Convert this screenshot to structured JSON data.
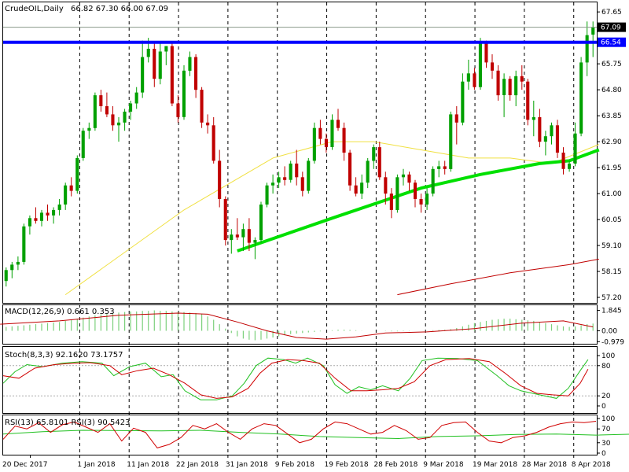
{
  "header": {
    "symbol": "CrudeOIL,Daily",
    "ohlc": "66.82 67.30 66.00 67.09"
  },
  "colors": {
    "bull": "#00a000",
    "bear": "#c00000",
    "ma_fast": "#00e000",
    "ma_mid": "#f0e040",
    "ma_slow": "#c00000",
    "resistance": "#0000ff",
    "macd_hist": "#7cd07c",
    "signal": "#c00000",
    "stoch_main": "#20c020",
    "stoch_signal": "#d00000",
    "rsi_fast": "#d00000",
    "rsi_slow": "#20c020"
  },
  "chart_data": {
    "type": "candlestick",
    "price_axis": {
      "ticks": [
        "67.65",
        "65.75",
        "64.80",
        "63.85",
        "62.90",
        "61.95",
        "61.00",
        "60.05",
        "59.10",
        "58.15",
        "57.20"
      ],
      "current_price": "67.09",
      "resistance_price": "66.54",
      "range": [
        57.0,
        68.0
      ]
    },
    "date_labels": [
      "20 Dec 2017",
      "1 Jan 2018",
      "11 Jan 2018",
      "22 Jan 2018",
      "31 Jan 2018",
      "9 Feb 2018",
      "19 Feb 2018",
      "28 Feb 2018",
      "9 Mar 2018",
      "19 Mar 2018",
      "28 Mar 2018",
      "8 Apr 2018"
    ],
    "candles": [
      [
        57.8,
        58.3,
        57.6,
        58.2
      ],
      [
        58.2,
        58.5,
        57.9,
        58.4
      ],
      [
        58.4,
        58.7,
        58.2,
        58.5
      ],
      [
        58.5,
        59.9,
        58.4,
        59.8
      ],
      [
        59.8,
        60.2,
        59.5,
        60.1
      ],
      [
        60.1,
        60.5,
        59.9,
        60.0
      ],
      [
        60.0,
        60.4,
        59.8,
        60.3
      ],
      [
        60.3,
        60.6,
        60.0,
        60.2
      ],
      [
        60.2,
        60.5,
        59.9,
        60.4
      ],
      [
        60.4,
        60.8,
        60.2,
        60.6
      ],
      [
        60.6,
        61.4,
        60.4,
        61.3
      ],
      [
        61.3,
        61.6,
        60.9,
        61.1
      ],
      [
        61.1,
        62.4,
        61.0,
        62.3
      ],
      [
        62.3,
        63.4,
        62.2,
        63.3
      ],
      [
        63.3,
        63.6,
        63.0,
        63.4
      ],
      [
        63.4,
        64.7,
        63.3,
        64.6
      ],
      [
        64.6,
        64.8,
        64.0,
        64.2
      ],
      [
        64.2,
        64.7,
        63.8,
        63.9
      ],
      [
        63.9,
        64.2,
        63.3,
        63.5
      ],
      [
        63.5,
        63.8,
        62.9,
        63.6
      ],
      [
        63.6,
        64.1,
        63.3,
        64.0
      ],
      [
        64.0,
        64.4,
        63.7,
        64.3
      ],
      [
        64.3,
        64.9,
        64.1,
        64.7
      ],
      [
        64.7,
        66.6,
        64.5,
        66.0
      ],
      [
        66.0,
        66.7,
        65.8,
        66.3
      ],
      [
        66.3,
        66.5,
        64.9,
        65.2
      ],
      [
        65.2,
        66.5,
        65.0,
        66.2
      ],
      [
        66.2,
        66.4,
        65.7,
        66.4
      ],
      [
        66.4,
        66.5,
        64.2,
        64.3
      ],
      [
        64.3,
        64.6,
        63.6,
        63.8
      ],
      [
        63.8,
        65.7,
        63.7,
        65.5
      ],
      [
        65.5,
        66.2,
        65.3,
        66.0
      ],
      [
        66.0,
        66.1,
        64.5,
        64.8
      ],
      [
        64.8,
        64.9,
        63.4,
        63.6
      ],
      [
        63.6,
        63.9,
        63.2,
        63.5
      ],
      [
        63.5,
        63.8,
        62.1,
        62.2
      ],
      [
        62.2,
        62.6,
        60.5,
        60.8
      ],
      [
        60.8,
        60.9,
        59.1,
        59.3
      ],
      [
        59.3,
        59.7,
        58.8,
        59.5
      ],
      [
        59.5,
        60.1,
        59.3,
        59.4
      ],
      [
        59.4,
        59.9,
        58.9,
        59.7
      ],
      [
        59.7,
        60.1,
        58.9,
        59.2
      ],
      [
        59.2,
        59.4,
        58.6,
        59.3
      ],
      [
        59.3,
        60.7,
        59.2,
        60.6
      ],
      [
        60.6,
        61.4,
        60.5,
        61.3
      ],
      [
        61.3,
        61.7,
        61.0,
        61.4
      ],
      [
        61.4,
        61.8,
        61.2,
        61.6
      ],
      [
        61.6,
        62.0,
        61.3,
        61.5
      ],
      [
        61.5,
        62.2,
        61.4,
        62.1
      ],
      [
        62.1,
        62.6,
        61.3,
        61.6
      ],
      [
        61.6,
        61.8,
        60.9,
        61.1
      ],
      [
        61.1,
        62.3,
        61.0,
        62.2
      ],
      [
        62.2,
        63.6,
        62.1,
        63.4
      ],
      [
        63.4,
        63.7,
        62.8,
        63.0
      ],
      [
        63.0,
        63.2,
        62.5,
        62.7
      ],
      [
        62.7,
        63.9,
        62.6,
        63.7
      ],
      [
        63.7,
        64.1,
        63.3,
        63.4
      ],
      [
        63.4,
        63.6,
        62.2,
        62.5
      ],
      [
        62.5,
        62.6,
        61.1,
        61.3
      ],
      [
        61.3,
        61.6,
        60.9,
        61.0
      ],
      [
        61.0,
        61.7,
        60.8,
        61.4
      ],
      [
        61.4,
        62.3,
        61.2,
        62.2
      ],
      [
        62.2,
        62.8,
        61.9,
        62.7
      ],
      [
        62.7,
        62.9,
        61.5,
        61.6
      ],
      [
        61.6,
        61.8,
        60.6,
        61.0
      ],
      [
        61.0,
        61.2,
        60.1,
        60.4
      ],
      [
        60.4,
        61.7,
        60.3,
        61.6
      ],
      [
        61.6,
        61.9,
        61.3,
        61.7
      ],
      [
        61.7,
        61.8,
        61.1,
        61.4
      ],
      [
        61.4,
        61.5,
        60.5,
        60.8
      ],
      [
        60.8,
        61.0,
        60.3,
        60.6
      ],
      [
        60.6,
        61.2,
        60.4,
        61.0
      ],
      [
        61.0,
        62.0,
        60.9,
        61.9
      ],
      [
        61.9,
        62.2,
        61.6,
        62.0
      ],
      [
        62.0,
        62.2,
        61.7,
        61.9
      ],
      [
        61.9,
        64.0,
        61.8,
        63.9
      ],
      [
        63.9,
        64.2,
        62.8,
        63.6
      ],
      [
        63.6,
        65.4,
        63.5,
        65.1
      ],
      [
        65.1,
        65.9,
        64.8,
        65.4
      ],
      [
        65.4,
        65.6,
        64.8,
        64.9
      ],
      [
        64.9,
        66.7,
        64.8,
        66.5
      ],
      [
        66.5,
        66.6,
        65.6,
        65.8
      ],
      [
        65.8,
        66.1,
        65.2,
        65.5
      ],
      [
        65.5,
        65.7,
        64.4,
        64.6
      ],
      [
        64.6,
        65.4,
        63.8,
        65.2
      ],
      [
        65.2,
        65.3,
        64.4,
        64.6
      ],
      [
        64.6,
        65.5,
        64.2,
        65.3
      ],
      [
        65.3,
        65.7,
        64.8,
        65.1
      ],
      [
        65.1,
        65.2,
        63.5,
        63.7
      ],
      [
        63.7,
        64.4,
        63.1,
        63.8
      ],
      [
        63.8,
        64.1,
        62.7,
        62.9
      ],
      [
        62.9,
        63.3,
        62.4,
        63.1
      ],
      [
        63.1,
        63.6,
        62.8,
        63.5
      ],
      [
        63.5,
        63.7,
        62.3,
        62.5
      ],
      [
        62.5,
        62.7,
        61.7,
        61.9
      ],
      [
        61.9,
        62.2,
        61.8,
        62.1
      ],
      [
        62.1,
        63.6,
        62.0,
        63.2
      ],
      [
        63.2,
        66.0,
        63.1,
        65.8
      ],
      [
        65.8,
        67.3,
        65.3,
        66.8
      ],
      [
        66.82,
        67.3,
        66.0,
        67.09
      ]
    ],
    "ma_fast": [
      [
        39,
        58.9
      ],
      [
        55,
        60.1
      ],
      [
        70,
        61.2
      ],
      [
        80,
        61.7
      ],
      [
        90,
        62.1
      ],
      [
        95,
        62.2
      ],
      [
        100,
        62.6
      ]
    ],
    "ma_mid": [
      [
        10,
        57.3
      ],
      [
        30,
        60.4
      ],
      [
        45,
        62.3
      ],
      [
        55,
        62.9
      ],
      [
        62,
        62.9
      ],
      [
        70,
        62.6
      ],
      [
        78,
        62.3
      ],
      [
        85,
        62.3
      ],
      [
        92,
        62.1
      ],
      [
        100,
        62.8
      ]
    ],
    "ma_slow": [
      [
        66,
        57.3
      ],
      [
        75,
        57.7
      ],
      [
        85,
        58.1
      ],
      [
        95,
        58.4
      ],
      [
        100,
        58.6
      ]
    ],
    "macd": {
      "label": "MACD(12,26,9) 0.661 0.353",
      "ticks": [
        "1.845",
        "0.00",
        "-0.979"
      ],
      "range": [
        -1.1,
        2.1
      ],
      "histogram": [
        0.35,
        0.4,
        0.45,
        0.5,
        0.55,
        0.6,
        0.65,
        0.7,
        0.75,
        0.8,
        0.9,
        1.0,
        1.1,
        1.2,
        1.3,
        1.4,
        1.5,
        1.55,
        1.6,
        1.65,
        1.7,
        1.75,
        1.75,
        1.8,
        1.8,
        1.85,
        1.8,
        1.8,
        1.75,
        1.7,
        1.7,
        1.65,
        1.6,
        1.5,
        1.3,
        1.0,
        0.6,
        0.2,
        -0.2,
        -0.5,
        -0.7,
        -0.8,
        -0.85,
        -0.8,
        -0.7,
        -0.6,
        -0.5,
        -0.4,
        -0.3,
        -0.25,
        -0.2,
        -0.15,
        -0.1,
        -0.05,
        0.0,
        0.05,
        0.1,
        0.1,
        0.08,
        0.05,
        0.02,
        0.0,
        0.0,
        0.0,
        -0.02,
        -0.05,
        -0.05,
        -0.03,
        -0.02,
        0.0,
        0.0,
        0.02,
        0.05,
        0.08,
        0.1,
        0.15,
        0.25,
        0.4,
        0.55,
        0.7,
        0.8,
        0.9,
        1.0,
        1.05,
        1.1,
        1.1,
        1.05,
        1.0,
        0.95,
        0.9,
        0.8,
        0.7,
        0.6,
        0.5,
        0.4,
        0.35,
        0.4,
        0.5,
        0.6,
        0.66
      ],
      "signal": [
        [
          0,
          0.6
        ],
        [
          10,
          0.9
        ],
        [
          20,
          1.4
        ],
        [
          30,
          1.6
        ],
        [
          35,
          1.5
        ],
        [
          40,
          0.8
        ],
        [
          45,
          0.0
        ],
        [
          50,
          -0.6
        ],
        [
          55,
          -0.75
        ],
        [
          60,
          -0.55
        ],
        [
          65,
          -0.2
        ],
        [
          72,
          -0.1
        ],
        [
          80,
          0.2
        ],
        [
          88,
          0.7
        ],
        [
          95,
          0.9
        ],
        [
          100,
          0.35
        ]
      ]
    },
    "stoch": {
      "label": "Stoch(8,3,3) 92.1620 73.1757",
      "ticks": [
        "100",
        "80",
        "20",
        "0"
      ],
      "main": [
        [
          0,
          45
        ],
        [
          3,
          68
        ],
        [
          6,
          82
        ],
        [
          10,
          78
        ],
        [
          15,
          85
        ],
        [
          20,
          88
        ],
        [
          25,
          85
        ],
        [
          28,
          60
        ],
        [
          32,
          78
        ],
        [
          36,
          85
        ],
        [
          40,
          58
        ],
        [
          43,
          62
        ],
        [
          46,
          30
        ],
        [
          50,
          12
        ],
        [
          54,
          12
        ],
        [
          58,
          20
        ],
        [
          61,
          45
        ],
        [
          64,
          80
        ],
        [
          67,
          95
        ],
        [
          71,
          92
        ],
        [
          74,
          85
        ],
        [
          77,
          95
        ],
        [
          81,
          80
        ],
        [
          84,
          42
        ],
        [
          87,
          25
        ],
        [
          90,
          38
        ],
        [
          93,
          32
        ],
        [
          96,
          40
        ],
        [
          100,
          30
        ],
        [
          103,
          55
        ],
        [
          106,
          90
        ],
        [
          110,
          95
        ],
        [
          115,
          94
        ],
        [
          120,
          90
        ],
        [
          125,
          60
        ],
        [
          128,
          40
        ],
        [
          131,
          30
        ],
        [
          134,
          25
        ],
        [
          137,
          20
        ],
        [
          140,
          15
        ],
        [
          143,
          35
        ],
        [
          146,
          70
        ],
        [
          148,
          92
        ]
      ],
      "signal": [
        [
          0,
          60
        ],
        [
          4,
          55
        ],
        [
          8,
          75
        ],
        [
          13,
          82
        ],
        [
          18,
          85
        ],
        [
          22,
          86
        ],
        [
          27,
          80
        ],
        [
          30,
          62
        ],
        [
          34,
          70
        ],
        [
          38,
          75
        ],
        [
          42,
          62
        ],
        [
          46,
          45
        ],
        [
          50,
          22
        ],
        [
          54,
          15
        ],
        [
          58,
          18
        ],
        [
          62,
          35
        ],
        [
          65,
          65
        ],
        [
          68,
          85
        ],
        [
          72,
          92
        ],
        [
          76,
          90
        ],
        [
          80,
          85
        ],
        [
          84,
          55
        ],
        [
          88,
          30
        ],
        [
          92,
          30
        ],
        [
          96,
          32
        ],
        [
          100,
          35
        ],
        [
          104,
          48
        ],
        [
          108,
          80
        ],
        [
          112,
          92
        ],
        [
          118,
          94
        ],
        [
          123,
          88
        ],
        [
          127,
          65
        ],
        [
          131,
          40
        ],
        [
          135,
          25
        ],
        [
          139,
          22
        ],
        [
          143,
          20
        ],
        [
          146,
          45
        ],
        [
          148,
          73
        ]
      ]
    },
    "rsi": {
      "label": "RSI(13) 65.8101  RSI(3) 90.5423",
      "ticks": [
        "100",
        "70",
        "30",
        "0"
      ],
      "slow": [
        [
          0,
          55
        ],
        [
          5,
          62
        ],
        [
          10,
          66
        ],
        [
          15,
          65
        ],
        [
          20,
          64
        ],
        [
          25,
          66
        ],
        [
          30,
          60
        ],
        [
          35,
          55
        ],
        [
          40,
          48
        ],
        [
          45,
          45
        ],
        [
          50,
          42
        ],
        [
          55,
          48
        ],
        [
          60,
          50
        ],
        [
          65,
          54
        ],
        [
          70,
          55
        ],
        [
          75,
          52
        ],
        [
          80,
          55
        ],
        [
          85,
          60
        ],
        [
          90,
          62
        ],
        [
          95,
          65
        ],
        [
          100,
          66
        ]
      ],
      "fast": [
        [
          0,
          40
        ],
        [
          1.5,
          78
        ],
        [
          3,
          70
        ],
        [
          4.5,
          88
        ],
        [
          6,
          60
        ],
        [
          7.5,
          82
        ],
        [
          9,
          90
        ],
        [
          10.5,
          75
        ],
        [
          12,
          60
        ],
        [
          13.5,
          85
        ],
        [
          15,
          35
        ],
        [
          16.5,
          72
        ],
        [
          18,
          60
        ],
        [
          19.5,
          15
        ],
        [
          21,
          25
        ],
        [
          22.5,
          45
        ],
        [
          24,
          80
        ],
        [
          25.5,
          70
        ],
        [
          27,
          85
        ],
        [
          28.5,
          60
        ],
        [
          30,
          40
        ],
        [
          31.5,
          70
        ],
        [
          33,
          85
        ],
        [
          34.5,
          80
        ],
        [
          36,
          55
        ],
        [
          37.5,
          30
        ],
        [
          39,
          40
        ],
        [
          40.5,
          70
        ],
        [
          42,
          90
        ],
        [
          43.5,
          85
        ],
        [
          45,
          70
        ],
        [
          46.5,
          55
        ],
        [
          48,
          60
        ],
        [
          49.5,
          80
        ],
        [
          51,
          65
        ],
        [
          52.5,
          40
        ],
        [
          54,
          45
        ],
        [
          55.5,
          80
        ],
        [
          57,
          88
        ],
        [
          58.5,
          90
        ],
        [
          60,
          60
        ],
        [
          61.5,
          35
        ],
        [
          63,
          30
        ],
        [
          64.5,
          45
        ],
        [
          66,
          50
        ],
        [
          67.5,
          60
        ],
        [
          69,
          75
        ],
        [
          70.5,
          85
        ],
        [
          72,
          90
        ],
        [
          73.5,
          88
        ],
        [
          75,
          92
        ]
      ]
    }
  }
}
